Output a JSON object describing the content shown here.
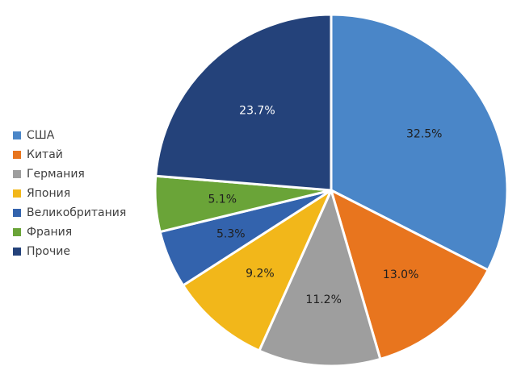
{
  "chart_data": {
    "type": "pie",
    "title": "",
    "legend_position": "left",
    "start_angle_deg": 0,
    "direction": "clockwise",
    "slices": [
      {
        "label": "США",
        "value": 32.5,
        "display": "32.5%",
        "color": "#4a86c8",
        "label_color": "#1f1f1f"
      },
      {
        "label": "Китай",
        "value": 13.0,
        "display": "13.0%",
        "color": "#e8751e",
        "label_color": "#1f1f1f"
      },
      {
        "label": "Германия",
        "value": 11.2,
        "display": "11.2%",
        "color": "#9e9e9e",
        "label_color": "#1f1f1f"
      },
      {
        "label": "Япония",
        "value": 9.2,
        "display": "9.2%",
        "color": "#f2b71a",
        "label_color": "#1f1f1f"
      },
      {
        "label": "Великобритания",
        "value": 5.3,
        "display": "5.3%",
        "color": "#3363ad",
        "label_color": "#1f1f1f"
      },
      {
        "label": "Франия",
        "value": 5.1,
        "display": "5.1%",
        "color": "#6aa438",
        "label_color": "#1f1f1f"
      },
      {
        "label": "Прочие",
        "value": 23.7,
        "display": "23.7%",
        "color": "#24427a",
        "label_color": "#ffffff"
      }
    ]
  }
}
